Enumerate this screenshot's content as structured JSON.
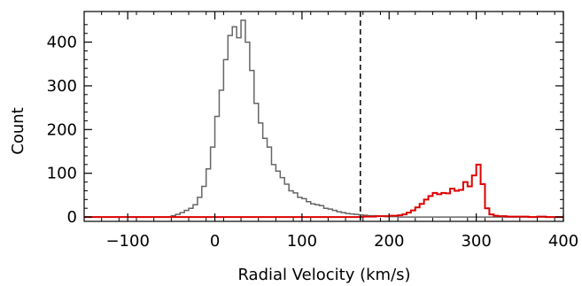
{
  "chart_data": {
    "type": "histogram",
    "xlabel": "Radial Velocity (km/s)",
    "ylabel": "Count",
    "xlim": [
      -150,
      400
    ],
    "ylim": [
      -10,
      470
    ],
    "x_ticks": [
      {
        "value": -100,
        "label": "−100"
      },
      {
        "value": 0,
        "label": "0"
      },
      {
        "value": 100,
        "label": "100"
      },
      {
        "value": 200,
        "label": "200"
      },
      {
        "value": 300,
        "label": "300"
      },
      {
        "value": 400,
        "label": "400"
      }
    ],
    "y_ticks": [
      {
        "value": 0,
        "label": "0"
      },
      {
        "value": 100,
        "label": "100"
      },
      {
        "value": 200,
        "label": "200"
      },
      {
        "value": 300,
        "label": "300"
      },
      {
        "value": 400,
        "label": "400"
      }
    ],
    "bin_width": 5,
    "divider_x": 167,
    "series": [
      {
        "color": "#666666",
        "bin_start": -150,
        "values": [
          0,
          0,
          0,
          0,
          0,
          0,
          0,
          0,
          0,
          0,
          0,
          0,
          0,
          0,
          0,
          0,
          0,
          0,
          0,
          0,
          3,
          6,
          10,
          15,
          20,
          28,
          45,
          70,
          110,
          160,
          230,
          290,
          360,
          415,
          435,
          410,
          450,
          400,
          335,
          260,
          215,
          180,
          160,
          120,
          105,
          90,
          75,
          60,
          55,
          45,
          42,
          35,
          30,
          28,
          26,
          20,
          18,
          15,
          12,
          10,
          8,
          7,
          6,
          5,
          4,
          3,
          3,
          2,
          2,
          1,
          1,
          1,
          0,
          0,
          0,
          0,
          0,
          0,
          0,
          0,
          0,
          0,
          0,
          0,
          0,
          0,
          0,
          0,
          0,
          0,
          0,
          0,
          0,
          0,
          0,
          0,
          0,
          0,
          0,
          0,
          0,
          0,
          0,
          0,
          0,
          0,
          0,
          0,
          0,
          0
        ]
      },
      {
        "color": "#dd0000",
        "bin_start": -150,
        "values": [
          0,
          0,
          0,
          0,
          0,
          0,
          0,
          0,
          0,
          0,
          0,
          0,
          0,
          0,
          0,
          0,
          0,
          0,
          0,
          0,
          0,
          0,
          0,
          0,
          0,
          0,
          0,
          0,
          0,
          0,
          0,
          0,
          0,
          0,
          0,
          0,
          0,
          0,
          0,
          0,
          0,
          0,
          0,
          0,
          0,
          0,
          0,
          0,
          0,
          0,
          0,
          0,
          0,
          0,
          0,
          0,
          0,
          0,
          0,
          0,
          0,
          0,
          0,
          0,
          1,
          1,
          1,
          2,
          2,
          2,
          3,
          3,
          4,
          6,
          10,
          15,
          22,
          30,
          40,
          48,
          55,
          52,
          55,
          54,
          65,
          60,
          62,
          80,
          70,
          95,
          120,
          75,
          20,
          6,
          3,
          2,
          2,
          1,
          1,
          1,
          1,
          1,
          0,
          0,
          1,
          1,
          0,
          0,
          0,
          0
        ]
      }
    ]
  }
}
